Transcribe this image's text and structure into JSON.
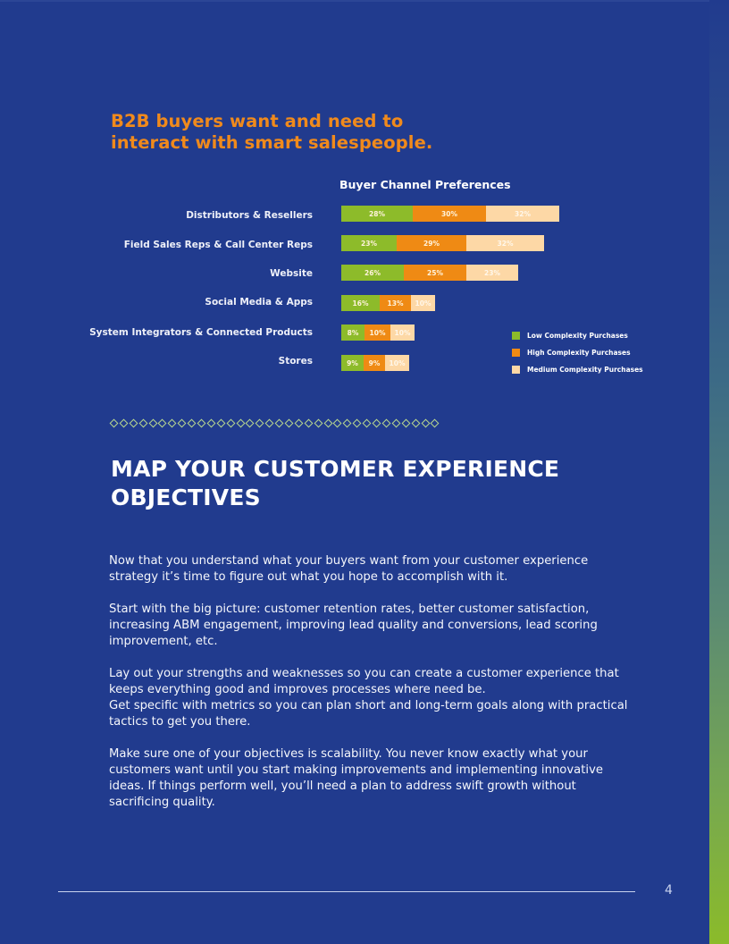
{
  "headline": {
    "line1": "B2B buyers want and need to",
    "line2": "interact with smart salespeople."
  },
  "chart": {
    "title": "Buyer Channel Preferences"
  },
  "chart_data": {
    "type": "bar",
    "orientation": "horizontal",
    "stacked": true,
    "title": "Buyer Channel Preferences",
    "categories": [
      "Distributors & Resellers",
      "Field Sales Reps & Call Center Reps",
      "Website",
      "Social Media & Apps",
      "System Integrators & Connected Products",
      "Stores"
    ],
    "series": [
      {
        "name": "Low Complexity Purchases",
        "color": "#8dbb2a",
        "values": [
          28,
          23,
          26,
          16,
          8,
          9
        ]
      },
      {
        "name": "High Complexity Purchases",
        "color": "#ef8a14",
        "values": [
          30,
          29,
          25,
          13,
          10,
          9
        ]
      },
      {
        "name": "Medium Complexity Purchases",
        "color": "#fdd8a6",
        "values": [
          32,
          32,
          23,
          10,
          10,
          10
        ]
      }
    ],
    "value_labels": [
      [
        "28%",
        "30%",
        "32%"
      ],
      [
        "23%",
        "29%",
        "32%"
      ],
      [
        "26%",
        "25%",
        "23%"
      ],
      [
        "16%",
        "13%",
        "10%"
      ],
      [
        "8%",
        "10%",
        "10%"
      ],
      [
        "9%",
        "9%",
        "10%"
      ]
    ],
    "xlabel": "",
    "ylabel": "",
    "grid": false,
    "legend_position": "right-bottom"
  },
  "legend": [
    {
      "label": "Low Complexity Purchases",
      "color": "#8dbb2a"
    },
    {
      "label": "High Complexity Purchases",
      "color": "#ef8a14"
    },
    {
      "label": "Medium Complexity Purchases",
      "color": "#fdd8a6"
    }
  ],
  "section": {
    "title_line1": "MAP YOUR CUSTOMER EXPERIENCE",
    "title_line2": "OBJECTIVES"
  },
  "paragraphs": [
    "Now that you understand what your buyers want from your customer experience strategy it’s time to figure out what you hope to accomplish with it.",
    "Start with the big picture: customer retention rates, better customer satisfaction, increasing ABM engagement, improving lead quality and conversions, lead scoring improvement, etc.",
    "Lay out your strengths and weaknesses so you can create a customer experience that keeps everything good and improves processes where need be.",
    "Get specific with metrics so you can plan short and long-term goals along with practical tactics to get you there.",
    "Make sure one of your objectives is scalability. You never know exactly what your customers want until you start making improvements and implementing innovative ideas. If things perform well, you’ll need a plan to address swift growth without sacrificing quality."
  ],
  "footer": {
    "page_number": "4"
  },
  "colors": {
    "background": "#213b8e",
    "accent_orange": "#f08a1c",
    "accent_green": "#8dbb2a"
  }
}
